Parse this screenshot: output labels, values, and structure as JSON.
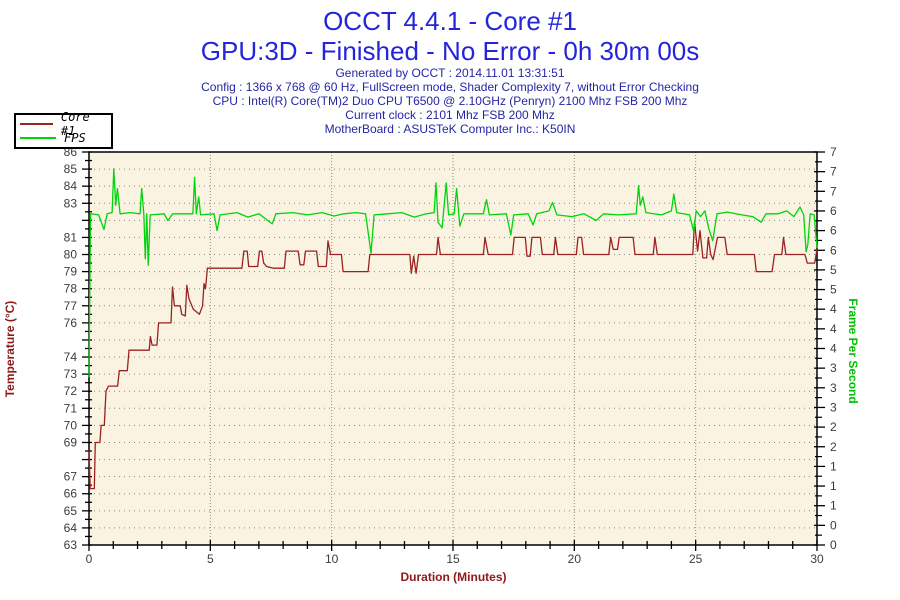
{
  "header": {
    "title": "OCCT 4.4.1 - Core #1",
    "subtitle": "GPU:3D - Finished - No Error - 0h 30m 00s",
    "info_lines": [
      "Generated by OCCT : 2014.11.01 13:31:51",
      "Config : 1366 x 768 @ 60 Hz, FullScreen mode, Shader Complexity 7, without Error Checking",
      "CPU : Intel(R) Core(TM)2 Duo CPU T6500 @ 2.10GHz (Penryn) 2100 Mhz FSB 200 Mhz",
      "Current clock : 2101 Mhz FSB 200 Mhz",
      "MotherBoard : ASUSTeK Computer Inc.: K50IN"
    ]
  },
  "legend": {
    "items": [
      {
        "label": "Core #1",
        "color": "#9B2222"
      },
      {
        "label": "FPS",
        "color": "#00D40A"
      }
    ]
  },
  "colors": {
    "title_blue": "#2424DC",
    "info_blue": "#2525A5",
    "temp_axis_red": "#8B1A1A",
    "fps_axis_green": "#00C000",
    "plot_bg": "#FAF3E1",
    "axis_line": "#000000",
    "tick_label": "#3C3C3C",
    "grid": "#8A8A8A"
  },
  "chart_data": {
    "type": "line",
    "xlabel": "Duration (Minutes)",
    "ylabel_left": "Temperature (°C)",
    "ylabel_right": "Frame Per Second",
    "grid": true,
    "legend_position": "top-left",
    "x_range": [
      0,
      30
    ],
    "x_tick_labels": [
      0,
      5,
      10,
      15,
      20,
      25,
      30
    ],
    "x_minor_step": 1,
    "y_left_range": [
      63,
      86
    ],
    "y_left_tick_labels": [
      86,
      85,
      84,
      83,
      81,
      80,
      79,
      78,
      77,
      76,
      74,
      73,
      72,
      71,
      70,
      69,
      67,
      66,
      65,
      64,
      63
    ],
    "y_right_range": [
      0,
      7
    ],
    "y_right_tick_labels": [
      "7",
      "7",
      "7",
      "6",
      "6",
      "6",
      "5",
      "5",
      "4",
      "4",
      "4",
      "3",
      "3",
      "3",
      "2",
      "2",
      "1",
      "1",
      "1",
      "0",
      "0"
    ],
    "series": [
      {
        "name": "Core #1",
        "axis": "temperature",
        "unit": "°C",
        "color": "#9B2222",
        "points": [
          [
            0,
            68.5
          ],
          [
            0.05,
            66.3
          ],
          [
            0.22,
            66.3
          ],
          [
            0.26,
            69.0
          ],
          [
            0.45,
            69.0
          ],
          [
            0.5,
            70.0
          ],
          [
            0.63,
            70.0
          ],
          [
            0.7,
            72.0
          ],
          [
            0.8,
            72.3
          ],
          [
            1.18,
            72.3
          ],
          [
            1.25,
            73.2
          ],
          [
            1.58,
            73.2
          ],
          [
            1.65,
            74.4
          ],
          [
            2.48,
            74.4
          ],
          [
            2.53,
            75.2
          ],
          [
            2.6,
            74.7
          ],
          [
            2.8,
            74.7
          ],
          [
            2.87,
            76.0
          ],
          [
            3.38,
            76.0
          ],
          [
            3.44,
            78.1
          ],
          [
            3.52,
            77.0
          ],
          [
            3.76,
            77.0
          ],
          [
            3.82,
            76.5
          ],
          [
            3.97,
            76.4
          ],
          [
            4.03,
            78.2
          ],
          [
            4.12,
            77.4
          ],
          [
            4.3,
            76.8
          ],
          [
            4.55,
            76.5
          ],
          [
            4.68,
            77.0
          ],
          [
            4.74,
            78.3
          ],
          [
            4.8,
            78.0
          ],
          [
            4.88,
            79.2
          ],
          [
            6.3,
            79.2
          ],
          [
            6.38,
            80.2
          ],
          [
            6.52,
            80.2
          ],
          [
            6.58,
            79.3
          ],
          [
            6.95,
            79.3
          ],
          [
            7.02,
            80.2
          ],
          [
            7.12,
            80.2
          ],
          [
            7.2,
            79.5
          ],
          [
            7.32,
            79.3
          ],
          [
            7.6,
            79.2
          ],
          [
            8.05,
            79.2
          ],
          [
            8.12,
            80.2
          ],
          [
            8.62,
            80.2
          ],
          [
            8.7,
            79.4
          ],
          [
            8.85,
            79.4
          ],
          [
            8.92,
            80.2
          ],
          [
            9.38,
            80.2
          ],
          [
            9.45,
            79.3
          ],
          [
            9.78,
            79.3
          ],
          [
            9.85,
            80.8
          ],
          [
            9.95,
            80.0
          ],
          [
            10.4,
            80.0
          ],
          [
            10.47,
            79.0
          ],
          [
            11.5,
            79.0
          ],
          [
            11.57,
            80.0
          ],
          [
            13.22,
            80.0
          ],
          [
            13.28,
            78.9
          ],
          [
            13.38,
            79.9
          ],
          [
            13.48,
            78.9
          ],
          [
            13.58,
            80.0
          ],
          [
            14.32,
            80.0
          ],
          [
            14.38,
            81.0
          ],
          [
            14.48,
            80.0
          ],
          [
            16.25,
            80.0
          ],
          [
            16.32,
            81.0
          ],
          [
            16.45,
            80.0
          ],
          [
            17.45,
            80.0
          ],
          [
            17.52,
            81.0
          ],
          [
            17.98,
            81.0
          ],
          [
            18.05,
            79.9
          ],
          [
            18.18,
            79.9
          ],
          [
            18.25,
            81.0
          ],
          [
            18.6,
            81.0
          ],
          [
            18.68,
            80.0
          ],
          [
            19.15,
            80.0
          ],
          [
            19.22,
            81.0
          ],
          [
            19.32,
            80.0
          ],
          [
            20.08,
            80.0
          ],
          [
            20.15,
            81.0
          ],
          [
            20.3,
            81.0
          ],
          [
            20.38,
            80.0
          ],
          [
            21.42,
            80.0
          ],
          [
            21.5,
            81.0
          ],
          [
            21.6,
            80.3
          ],
          [
            21.78,
            80.3
          ],
          [
            21.85,
            81.0
          ],
          [
            22.42,
            81.0
          ],
          [
            22.5,
            80.0
          ],
          [
            23.25,
            80.0
          ],
          [
            23.32,
            81.0
          ],
          [
            23.42,
            80.0
          ],
          [
            24.88,
            80.0
          ],
          [
            24.95,
            81.9
          ],
          [
            25.08,
            80.2
          ],
          [
            25.18,
            81.4
          ],
          [
            25.3,
            79.8
          ],
          [
            25.45,
            79.8
          ],
          [
            25.52,
            81.0
          ],
          [
            25.62,
            80.0
          ],
          [
            25.72,
            79.7
          ],
          [
            25.9,
            81.0
          ],
          [
            26.2,
            81.0
          ],
          [
            26.3,
            80.0
          ],
          [
            27.42,
            80.0
          ],
          [
            27.5,
            79.0
          ],
          [
            28.15,
            79.0
          ],
          [
            28.25,
            80.0
          ],
          [
            28.55,
            80.0
          ],
          [
            28.62,
            81.0
          ],
          [
            28.72,
            80.0
          ],
          [
            29.5,
            80.0
          ],
          [
            29.6,
            79.5
          ],
          [
            29.9,
            79.5
          ],
          [
            30,
            80.3
          ]
        ]
      },
      {
        "name": "FPS",
        "axis": "fps",
        "unit": "fps",
        "color": "#00D40A",
        "points": [
          [
            0,
            3.0
          ],
          [
            0.06,
            5.9
          ],
          [
            0.4,
            5.88
          ],
          [
            0.62,
            5.62
          ],
          [
            0.75,
            5.9
          ],
          [
            0.95,
            5.92
          ],
          [
            1.02,
            6.7
          ],
          [
            1.1,
            6.05
          ],
          [
            1.17,
            6.35
          ],
          [
            1.28,
            5.9
          ],
          [
            1.7,
            5.92
          ],
          [
            2.1,
            5.9
          ],
          [
            2.17,
            6.35
          ],
          [
            2.26,
            5.9
          ],
          [
            2.32,
            5.1
          ],
          [
            2.38,
            5.9
          ],
          [
            2.44,
            4.98
          ],
          [
            2.52,
            5.88
          ],
          [
            3.1,
            5.9
          ],
          [
            3.25,
            5.78
          ],
          [
            3.45,
            5.9
          ],
          [
            4.28,
            5.9
          ],
          [
            4.35,
            6.55
          ],
          [
            4.42,
            5.9
          ],
          [
            4.52,
            6.2
          ],
          [
            4.6,
            5.88
          ],
          [
            5.15,
            5.9
          ],
          [
            5.28,
            5.6
          ],
          [
            5.4,
            5.88
          ],
          [
            6.1,
            5.92
          ],
          [
            6.55,
            5.84
          ],
          [
            7.0,
            5.9
          ],
          [
            7.55,
            5.72
          ],
          [
            7.7,
            5.9
          ],
          [
            8.4,
            5.92
          ],
          [
            9.0,
            5.88
          ],
          [
            9.6,
            5.92
          ],
          [
            10.1,
            5.86
          ],
          [
            10.5,
            5.9
          ],
          [
            11.0,
            5.92
          ],
          [
            11.4,
            5.9
          ],
          [
            11.62,
            5.2
          ],
          [
            11.75,
            5.88
          ],
          [
            12.3,
            5.9
          ],
          [
            12.9,
            5.92
          ],
          [
            13.4,
            5.84
          ],
          [
            13.9,
            5.9
          ],
          [
            14.22,
            5.92
          ],
          [
            14.3,
            6.45
          ],
          [
            14.38,
            5.75
          ],
          [
            14.55,
            5.65
          ],
          [
            14.72,
            6.45
          ],
          [
            14.82,
            5.88
          ],
          [
            15.05,
            5.9
          ],
          [
            15.15,
            6.35
          ],
          [
            15.28,
            5.68
          ],
          [
            15.45,
            5.9
          ],
          [
            16.25,
            5.9
          ],
          [
            16.38,
            6.15
          ],
          [
            16.5,
            5.88
          ],
          [
            17.2,
            5.9
          ],
          [
            17.38,
            5.52
          ],
          [
            17.5,
            5.88
          ],
          [
            18.1,
            5.9
          ],
          [
            18.3,
            5.7
          ],
          [
            18.45,
            5.9
          ],
          [
            18.95,
            5.95
          ],
          [
            19.1,
            6.1
          ],
          [
            19.28,
            5.88
          ],
          [
            19.9,
            5.85
          ],
          [
            20.4,
            5.9
          ],
          [
            20.9,
            5.78
          ],
          [
            21.2,
            5.9
          ],
          [
            21.8,
            5.88
          ],
          [
            22.55,
            5.9
          ],
          [
            22.65,
            6.4
          ],
          [
            22.72,
            6.05
          ],
          [
            22.82,
            6.2
          ],
          [
            22.95,
            5.92
          ],
          [
            23.6,
            5.88
          ],
          [
            24.0,
            5.95
          ],
          [
            24.1,
            6.25
          ],
          [
            24.22,
            5.92
          ],
          [
            24.75,
            5.88
          ],
          [
            24.92,
            5.58
          ],
          [
            25.02,
            5.95
          ],
          [
            25.2,
            5.85
          ],
          [
            25.38,
            5.95
          ],
          [
            25.55,
            5.62
          ],
          [
            25.7,
            5.42
          ],
          [
            25.88,
            5.9
          ],
          [
            26.3,
            5.93
          ],
          [
            26.9,
            5.88
          ],
          [
            27.35,
            5.85
          ],
          [
            27.7,
            5.75
          ],
          [
            27.9,
            5.9
          ],
          [
            28.4,
            5.9
          ],
          [
            28.75,
            5.95
          ],
          [
            29.05,
            5.85
          ],
          [
            29.3,
            6.02
          ],
          [
            29.45,
            5.88
          ],
          [
            29.55,
            5.22
          ],
          [
            29.62,
            5.35
          ],
          [
            29.72,
            5.9
          ],
          [
            29.88,
            5.88
          ],
          [
            30,
            5.3
          ]
        ]
      }
    ]
  }
}
